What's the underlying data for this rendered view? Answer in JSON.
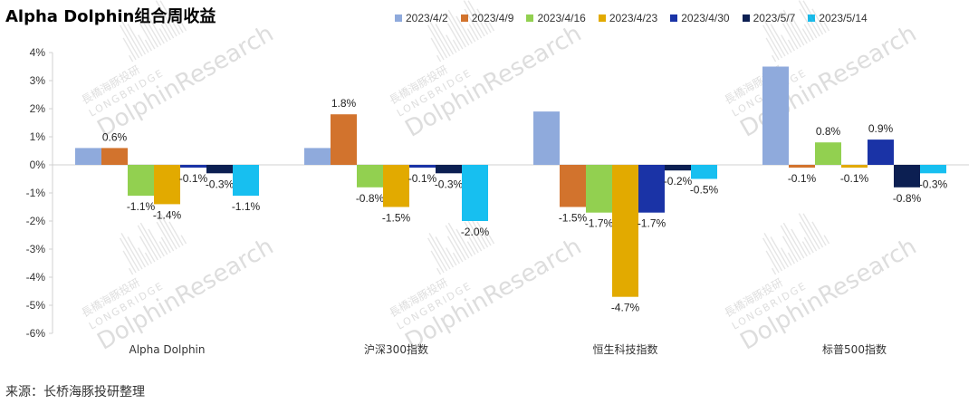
{
  "page": {
    "title": "Alpha Dolphin组合周收益",
    "source": "来源：长桥海豚投研整理",
    "watermark_brand": "長橋海豚投研",
    "watermark_latin": "LONGBRIDGE",
    "watermark_main": "DolphinResearch"
  },
  "chart_data": {
    "type": "bar",
    "title": "Alpha Dolphin组合周收益",
    "xlabel": "",
    "ylabel": "",
    "ylim": [
      -6,
      4
    ],
    "yticks": [
      4,
      3,
      2,
      1,
      0,
      -1,
      -2,
      -3,
      -4,
      -5,
      -6
    ],
    "ytick_labels": [
      "4%",
      "3%",
      "2%",
      "1%",
      "0%",
      "-1%",
      "-2%",
      "-3%",
      "-4%",
      "-5%",
      "-6%"
    ],
    "grid": false,
    "legend_position": "top",
    "categories": [
      "Alpha Dolphin",
      "沪深300指数",
      "恒生科技指数",
      "标普500指数"
    ],
    "series": [
      {
        "name": "2023/4/2",
        "color": "#8faadc",
        "values": [
          0.6,
          0.6,
          1.9,
          3.5
        ],
        "labels": [
          "",
          "",
          "",
          ""
        ]
      },
      {
        "name": "2023/4/9",
        "color": "#d2732d",
        "values": [
          0.6,
          1.8,
          -1.5,
          -0.1
        ],
        "labels": [
          "0.6%",
          "1.8%",
          "-1.5%",
          "-0.1%"
        ]
      },
      {
        "name": "2023/4/16",
        "color": "#92d050",
        "values": [
          -1.1,
          -0.8,
          -1.7,
          0.8
        ],
        "labels": [
          "-1.1%",
          "-0.8%",
          "-1.7%",
          "0.8%"
        ]
      },
      {
        "name": "2023/4/23",
        "color": "#e2aa00",
        "values": [
          -1.4,
          -1.5,
          -4.7,
          -0.1
        ],
        "labels": [
          "-1.4%",
          "-1.5%",
          "-4.7%",
          "-0.1%"
        ]
      },
      {
        "name": "2023/4/30",
        "color": "#1a33a6",
        "values": [
          -0.1,
          -0.1,
          -1.7,
          0.9
        ],
        "labels": [
          "-0.1%",
          "-0.1%",
          "-1.7%",
          "0.9%"
        ]
      },
      {
        "name": "2023/5/7",
        "color": "#0c1f52",
        "values": [
          -0.3,
          -0.3,
          -0.2,
          -0.8
        ],
        "labels": [
          "-0.3%",
          "-0.3%",
          "-0.2%",
          "-0.8%"
        ]
      },
      {
        "name": "2023/5/14",
        "color": "#17bff0",
        "values": [
          -1.1,
          -2.0,
          -0.5,
          -0.3
        ],
        "labels": [
          "-1.1%",
          "-2.0%",
          "-0.5%",
          "-0.3%"
        ]
      }
    ]
  }
}
